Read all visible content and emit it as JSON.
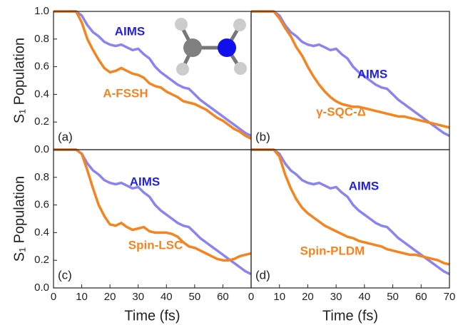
{
  "chart_data": [
    {
      "type": "line",
      "panel_label": "(a)",
      "ylabel": "S₁ Population",
      "x": [
        0,
        2,
        4,
        6,
        8,
        10,
        12,
        14,
        16,
        18,
        20,
        22,
        24,
        26,
        28,
        30,
        32,
        34,
        36,
        38,
        40,
        42,
        44,
        46,
        48,
        50,
        52,
        54,
        56,
        58,
        60,
        62,
        64,
        66,
        68,
        70
      ],
      "xlim": [
        0,
        70
      ],
      "ylim": [
        0,
        1.0
      ],
      "yticks": [
        {
          "value": 0,
          "label": "0.0"
        },
        {
          "value": 0.2,
          "label": "0.2"
        },
        {
          "value": 0.4,
          "label": "0.4"
        },
        {
          "value": 0.6,
          "label": "0.6"
        },
        {
          "value": 0.8,
          "label": "0.8"
        },
        {
          "value": 1.0,
          "label": "1.0"
        }
      ],
      "series": [
        {
          "name": "AIMS",
          "color": "#8a84f0",
          "label_color": "#2222dd",
          "values": [
            1,
            1,
            1,
            1,
            1,
            0.97,
            0.9,
            0.85,
            0.82,
            0.78,
            0.76,
            0.75,
            0.76,
            0.74,
            0.72,
            0.73,
            0.69,
            0.66,
            0.6,
            0.56,
            0.53,
            0.5,
            0.47,
            0.45,
            0.44,
            0.4,
            0.36,
            0.33,
            0.3,
            0.27,
            0.24,
            0.21,
            0.18,
            0.15,
            0.12,
            0.1
          ]
        },
        {
          "name": "A-FSSH",
          "color": "#f5841f",
          "label_color": "#f5841f",
          "values": [
            1,
            1,
            1,
            1,
            1,
            0.92,
            0.8,
            0.72,
            0.65,
            0.59,
            0.56,
            0.57,
            0.59,
            0.57,
            0.55,
            0.54,
            0.52,
            0.48,
            0.46,
            0.45,
            0.42,
            0.4,
            0.38,
            0.35,
            0.34,
            0.33,
            0.31,
            0.29,
            0.26,
            0.23,
            0.21,
            0.18,
            0.15,
            0.13,
            0.1,
            0.08
          ]
        }
      ]
    },
    {
      "type": "line",
      "panel_label": "(b)",
      "x": [
        0,
        2,
        4,
        6,
        8,
        10,
        12,
        14,
        16,
        18,
        20,
        22,
        24,
        26,
        28,
        30,
        32,
        34,
        36,
        38,
        40,
        42,
        44,
        46,
        48,
        50,
        52,
        54,
        56,
        58,
        60,
        62,
        64,
        66,
        68,
        70
      ],
      "xlim": [
        0,
        70
      ],
      "ylim": [
        0,
        1.0
      ],
      "series": [
        {
          "name": "AIMS",
          "color": "#8a84f0",
          "label_color": "#2222dd",
          "values": [
            1,
            1,
            1,
            1,
            1,
            0.97,
            0.9,
            0.85,
            0.82,
            0.78,
            0.76,
            0.75,
            0.76,
            0.74,
            0.72,
            0.73,
            0.69,
            0.66,
            0.6,
            0.56,
            0.53,
            0.5,
            0.47,
            0.45,
            0.44,
            0.4,
            0.36,
            0.33,
            0.3,
            0.27,
            0.24,
            0.21,
            0.18,
            0.15,
            0.12,
            0.1
          ]
        },
        {
          "name": "γ-SQC-Δ",
          "color": "#f5841f",
          "label_color": "#f5841f",
          "values": [
            1,
            1,
            1,
            1,
            1,
            0.95,
            0.88,
            0.82,
            0.74,
            0.68,
            0.6,
            0.53,
            0.47,
            0.42,
            0.38,
            0.35,
            0.33,
            0.32,
            0.31,
            0.31,
            0.3,
            0.29,
            0.28,
            0.27,
            0.26,
            0.25,
            0.24,
            0.24,
            0.23,
            0.22,
            0.21,
            0.2,
            0.19,
            0.18,
            0.17,
            0.16
          ]
        }
      ]
    },
    {
      "type": "line",
      "panel_label": "(c)",
      "ylabel": "S₁ Population",
      "xlabel": "Time (fs)",
      "x": [
        0,
        2,
        4,
        6,
        8,
        10,
        12,
        14,
        16,
        18,
        20,
        22,
        24,
        26,
        28,
        30,
        32,
        34,
        36,
        38,
        40,
        42,
        44,
        46,
        48,
        50,
        52,
        54,
        56,
        58,
        60,
        62,
        64,
        66,
        68,
        70
      ],
      "xlim": [
        0,
        70
      ],
      "ylim": [
        0,
        1.0
      ],
      "xticks": [
        0,
        10,
        20,
        30,
        40,
        50,
        60
      ],
      "yticks": [
        {
          "value": 0,
          "label": "0.0"
        },
        {
          "value": 0.2,
          "label": "0.2"
        },
        {
          "value": 0.4,
          "label": "0.4"
        },
        {
          "value": 0.6,
          "label": "0.6"
        },
        {
          "value": 0.8,
          "label": "0.8"
        }
      ],
      "series": [
        {
          "name": "AIMS",
          "color": "#8a84f0",
          "label_color": "#2222dd",
          "values": [
            1,
            1,
            1,
            1,
            1,
            0.97,
            0.9,
            0.85,
            0.82,
            0.78,
            0.76,
            0.75,
            0.76,
            0.74,
            0.72,
            0.73,
            0.69,
            0.66,
            0.6,
            0.56,
            0.53,
            0.5,
            0.47,
            0.45,
            0.44,
            0.4,
            0.36,
            0.33,
            0.3,
            0.27,
            0.24,
            0.21,
            0.18,
            0.15,
            0.12,
            0.1
          ]
        },
        {
          "name": "Spin-LSC",
          "color": "#f5841f",
          "label_color": "#f5841f",
          "values": [
            1,
            1,
            1,
            1,
            1,
            0.97,
            0.85,
            0.72,
            0.6,
            0.52,
            0.46,
            0.45,
            0.47,
            0.44,
            0.42,
            0.43,
            0.44,
            0.41,
            0.4,
            0.4,
            0.4,
            0.39,
            0.37,
            0.33,
            0.3,
            0.29,
            0.27,
            0.25,
            0.23,
            0.21,
            0.2,
            0.2,
            0.21,
            0.23,
            0.24,
            0.25
          ]
        }
      ]
    },
    {
      "type": "line",
      "panel_label": "(d)",
      "xlabel": "Time (fs)",
      "x": [
        0,
        2,
        4,
        6,
        8,
        10,
        12,
        14,
        16,
        18,
        20,
        22,
        24,
        26,
        28,
        30,
        32,
        34,
        36,
        38,
        40,
        42,
        44,
        46,
        48,
        50,
        52,
        54,
        56,
        58,
        60,
        62,
        64,
        66,
        68,
        70
      ],
      "xlim": [
        0,
        70
      ],
      "ylim": [
        0,
        1.0
      ],
      "xticks": [
        0,
        10,
        20,
        30,
        40,
        50,
        60,
        70
      ],
      "series": [
        {
          "name": "AIMS",
          "color": "#8a84f0",
          "label_color": "#2222dd",
          "values": [
            1,
            1,
            1,
            1,
            1,
            0.97,
            0.9,
            0.85,
            0.82,
            0.78,
            0.76,
            0.75,
            0.76,
            0.74,
            0.72,
            0.73,
            0.69,
            0.66,
            0.6,
            0.56,
            0.53,
            0.5,
            0.47,
            0.45,
            0.44,
            0.4,
            0.36,
            0.33,
            0.3,
            0.27,
            0.24,
            0.21,
            0.18,
            0.15,
            0.12,
            0.1
          ]
        },
        {
          "name": "Spin-PLDM",
          "color": "#f5841f",
          "label_color": "#f5841f",
          "values": [
            1,
            1,
            1,
            1,
            1,
            0.95,
            0.82,
            0.72,
            0.64,
            0.58,
            0.54,
            0.51,
            0.48,
            0.45,
            0.43,
            0.41,
            0.39,
            0.37,
            0.36,
            0.34,
            0.33,
            0.32,
            0.31,
            0.3,
            0.28,
            0.27,
            0.26,
            0.25,
            0.24,
            0.24,
            0.23,
            0.22,
            0.21,
            0.2,
            0.18,
            0.17
          ]
        }
      ]
    }
  ]
}
